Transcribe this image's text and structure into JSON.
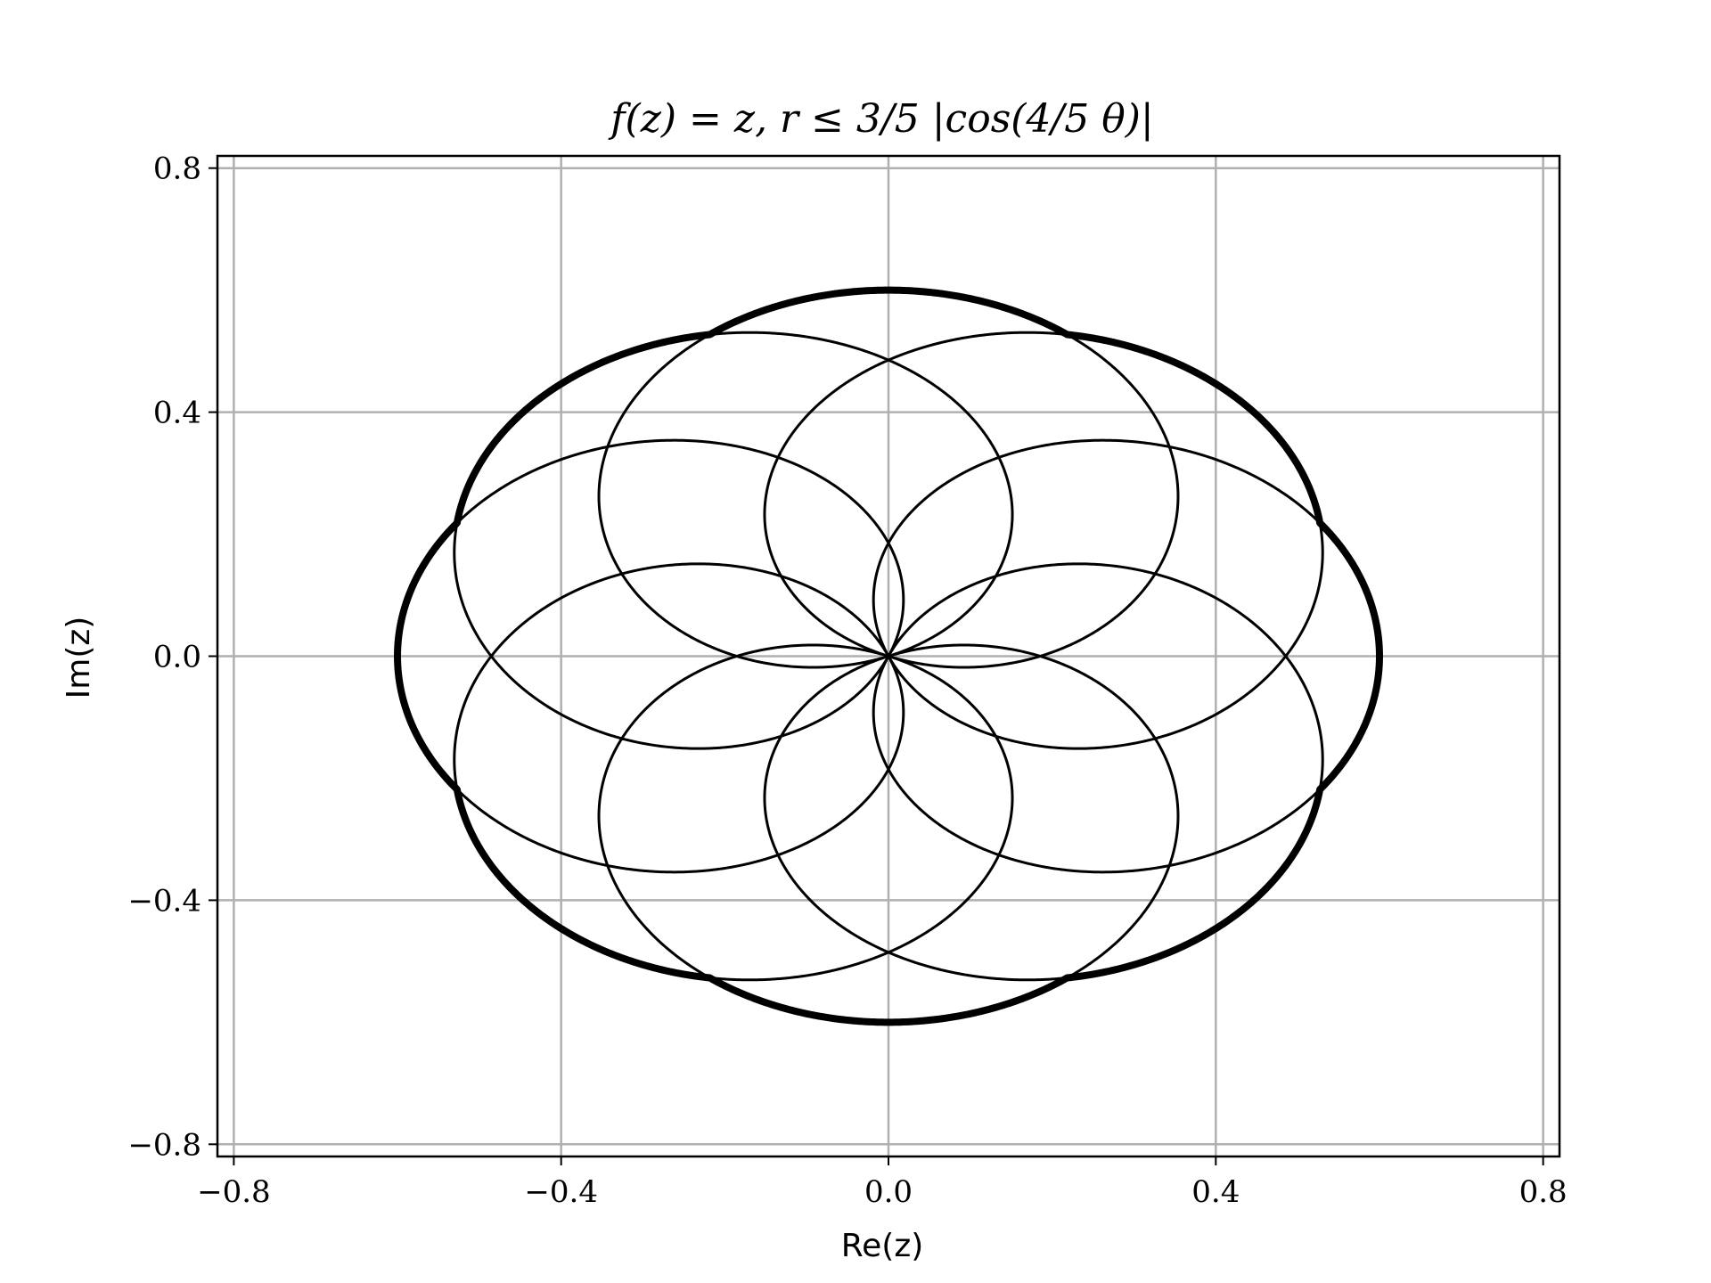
{
  "chart_data": {
    "type": "line",
    "title": "f(z) = z, r ≤ 3/5 |cos(4/5 θ)|",
    "xlabel": "Re(z)",
    "ylabel": "Im(z)",
    "xlim": [
      -0.82,
      0.82
    ],
    "ylim": [
      -0.82,
      0.82
    ],
    "x_ticks": [
      -0.8,
      -0.4,
      0.0,
      0.4,
      0.8
    ],
    "y_ticks": [
      -0.8,
      -0.4,
      0.0,
      0.4,
      0.8
    ],
    "x_tick_labels": [
      "−0.8",
      "−0.4",
      "0.0",
      "0.4",
      "0.8"
    ],
    "y_tick_labels": [
      "−0.8",
      "−0.4",
      "0.0",
      "0.4",
      "0.8"
    ],
    "grid": true,
    "series": [
      {
        "curve": "rose",
        "equation": "r = 0.6·cos(0.8·θ)",
        "amplitude": 0.6,
        "k": 0.8,
        "theta_range_pi": [
          0,
          10
        ],
        "color": "#000000"
      },
      {
        "curve": "boundary",
        "equation": "r = 0.6·|cos(0.8·θ)|, envelope",
        "max_radius": 0.6,
        "color": "#000000"
      }
    ]
  }
}
